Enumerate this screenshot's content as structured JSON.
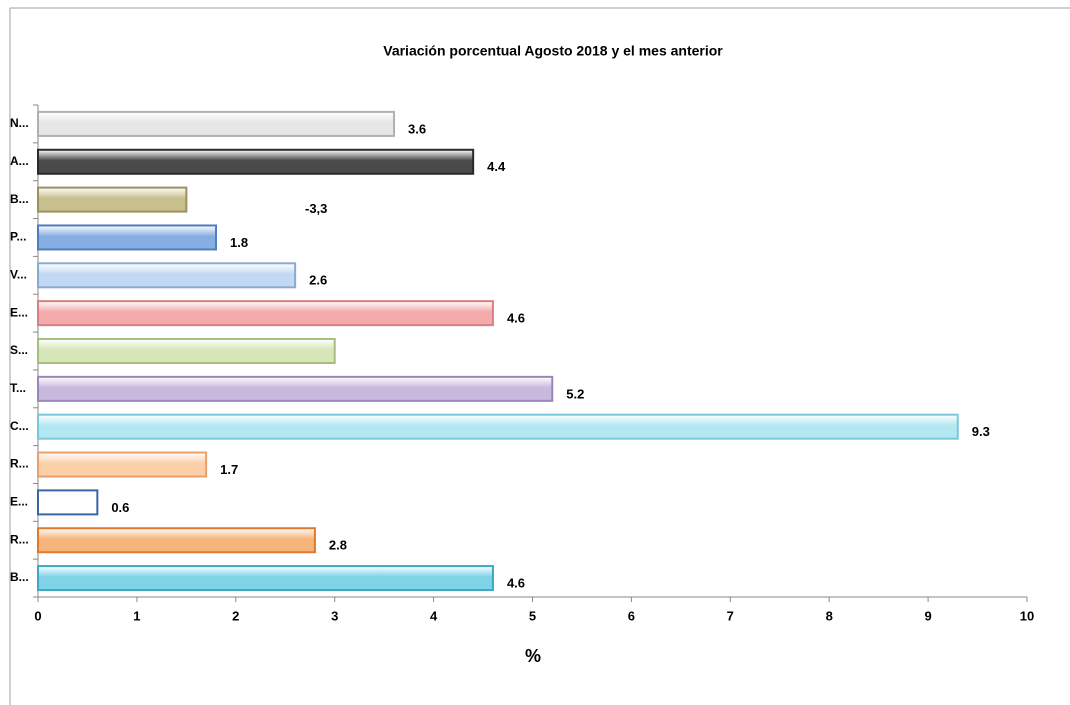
{
  "chart_data": {
    "type": "bar",
    "orientation": "horizontal",
    "title": "Variación porcentual  Agosto 2018 y el mes anterior",
    "x_label": "%",
    "categories": [
      "B...",
      "R...",
      "E...",
      "R...",
      "C...",
      "T...",
      "S...",
      "E...",
      "V...",
      "P...",
      "B...",
      "A...",
      "N..."
    ],
    "values": [
      4.6,
      2.8,
      0.6,
      1.7,
      9.3,
      5.2,
      3.0,
      4.6,
      2.6,
      1.8,
      1.5,
      4.4,
      3.6
    ],
    "value_labels": [
      "4.6",
      "2.8",
      "0.6",
      "1.7",
      "9.3",
      "5.2",
      null,
      "4.6",
      "2.6",
      "1.8",
      null,
      "4.4",
      "3.6"
    ],
    "colors": [
      "#7fd3e6",
      "#f6b47a",
      "#ffffff",
      "#fbcfa8",
      "#b3e8f2",
      "#c9b9de",
      "#d6e6b8",
      "#f2aaaa",
      "#c3d8f2",
      "#86aee2",
      "#c8bf8e",
      "#4a4a4a",
      "#e6e6e6"
    ],
    "borders": [
      "#3fa7c1",
      "#e07a2a",
      "#3a66a8",
      "#e9a06a",
      "#7cc8d8",
      "#9a86b8",
      "#a6bf7c",
      "#d98080",
      "#8aa9d2",
      "#4d7fc0",
      "#9a9060",
      "#2a2a2a",
      "#b0b0b0"
    ],
    "annotations": [
      "-3,3"
    ],
    "xlim": [
      0,
      10
    ],
    "xticks": [
      0,
      1,
      2,
      3,
      4,
      5,
      6,
      7,
      8,
      9,
      10
    ]
  }
}
